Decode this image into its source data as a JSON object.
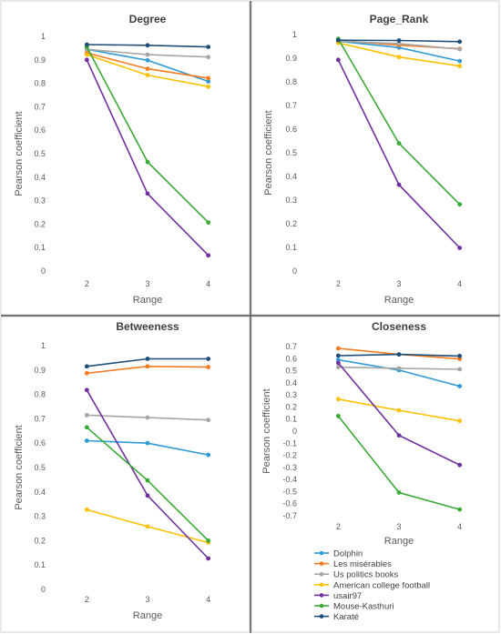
{
  "chart_data": [
    {
      "type": "line",
      "title": "Degree",
      "xlabel": "Range",
      "ylabel": "Pearson coefficient",
      "categories": [
        "2",
        "3",
        "4"
      ],
      "ylim": [
        0,
        1
      ],
      "yticks": [
        "0",
        "0.1",
        "0.2",
        "0.3",
        "0.4",
        "0.5",
        "0.6",
        "0.7",
        "0.8",
        "0.9",
        "1"
      ],
      "series": [
        {
          "name": "Dolphin",
          "values": [
            0.945,
            0.898,
            0.808
          ]
        },
        {
          "name": "Les misérables",
          "values": [
            0.93,
            0.862,
            0.822
          ]
        },
        {
          "name": "Us politics books",
          "values": [
            0.945,
            0.922,
            0.912
          ]
        },
        {
          "name": "American college football",
          "values": [
            0.922,
            0.835,
            0.786
          ]
        },
        {
          "name": "usair97",
          "values": [
            0.9,
            0.33,
            0.067
          ]
        },
        {
          "name": "Mouse-Kasthuri",
          "values": [
            0.955,
            0.465,
            0.207
          ]
        },
        {
          "name": "Karaté",
          "values": [
            0.965,
            0.962,
            0.955
          ]
        }
      ]
    },
    {
      "type": "line",
      "title": "Page_Rank",
      "xlabel": "Range",
      "ylabel": "Pearson coefficient",
      "categories": [
        "2",
        "3",
        "4"
      ],
      "ylim": [
        0,
        1
      ],
      "yticks": [
        "0",
        "0.1",
        "0.2",
        "0.3",
        "0.4",
        "0.5",
        "0.6",
        "0.7",
        "0.8",
        "0.9",
        "1"
      ],
      "series": [
        {
          "name": "Dolphin",
          "values": [
            0.972,
            0.945,
            0.888
          ]
        },
        {
          "name": "Les misérables",
          "values": [
            0.975,
            0.955,
            0.94
          ]
        },
        {
          "name": "Us politics books",
          "values": [
            0.972,
            0.962,
            0.938
          ]
        },
        {
          "name": "American college football",
          "values": [
            0.965,
            0.905,
            0.867
          ]
        },
        {
          "name": "usair97",
          "values": [
            0.893,
            0.365,
            0.098
          ]
        },
        {
          "name": "Mouse-Kasthuri",
          "values": [
            0.982,
            0.54,
            0.282
          ]
        },
        {
          "name": "Karaté",
          "values": [
            0.976,
            0.975,
            0.97
          ]
        }
      ]
    },
    {
      "type": "line",
      "title": "Betweeness",
      "xlabel": "Range",
      "ylabel": "Pearson coefficient",
      "categories": [
        "2",
        "3",
        "4"
      ],
      "ylim": [
        0,
        1
      ],
      "yticks": [
        "0",
        "0.1",
        "0.2",
        "0.3",
        "0.4",
        "0.5",
        "0.6",
        "0.7",
        "0.8",
        "0.9",
        "1"
      ],
      "series": [
        {
          "name": "Dolphin",
          "values": [
            0.61,
            0.6,
            0.552
          ]
        },
        {
          "name": "Les misérables",
          "values": [
            0.887,
            0.915,
            0.912
          ]
        },
        {
          "name": "Us politics books",
          "values": [
            0.715,
            0.705,
            0.695
          ]
        },
        {
          "name": "American college football",
          "values": [
            0.327,
            0.258,
            0.192
          ]
        },
        {
          "name": "usair97",
          "values": [
            0.818,
            0.385,
            0.127
          ]
        },
        {
          "name": "Mouse-Kasthuri",
          "values": [
            0.665,
            0.447,
            0.2
          ]
        },
        {
          "name": "Karaté",
          "values": [
            0.915,
            0.946,
            0.946
          ]
        }
      ]
    },
    {
      "type": "line",
      "title": "Closeness",
      "xlabel": "Range",
      "ylabel": "Pearson coefficient",
      "categories": [
        "2",
        "3",
        "4"
      ],
      "ylim": [
        -0.7,
        0.7
      ],
      "yticks": [
        "0.7",
        "0.6",
        "0.5",
        "0.4",
        "0.3",
        "0.2",
        "0.1",
        "0",
        "-0.1",
        "-0.2",
        "-0.3",
        "-0.4",
        "-0.5",
        "-0.6",
        "-0.7"
      ],
      "series": [
        {
          "name": "Dolphin",
          "values": [
            0.59,
            0.505,
            0.372
          ]
        },
        {
          "name": "Les misérables",
          "values": [
            0.685,
            0.635,
            0.598
          ]
        },
        {
          "name": "Us politics books",
          "values": [
            0.53,
            0.52,
            0.512
          ]
        },
        {
          "name": "American college football",
          "values": [
            0.265,
            0.172,
            0.085
          ]
        },
        {
          "name": "usair97",
          "values": [
            0.565,
            -0.035,
            -0.28
          ]
        },
        {
          "name": "Mouse-Kasthuri",
          "values": [
            0.125,
            -0.508,
            -0.648
          ]
        },
        {
          "name": "Karaté",
          "values": [
            0.625,
            0.635,
            0.622
          ]
        }
      ]
    }
  ],
  "colors": {
    "Dolphin": "#2e9bd6",
    "Les misérables": "#f47b20",
    "Us politics books": "#a6a6a6",
    "American college football": "#ffc000",
    "usair97": "#7030a0",
    "Mouse-Kasthuri": "#3aaa35",
    "Karaté": "#1f4e79"
  },
  "legend": {
    "placement": "bottom-right panel, below Closeness chart",
    "entries": [
      "Dolphin",
      "Les misérables",
      "Us politics books",
      "American college football",
      "usair97",
      "Mouse-Kasthuri",
      "Karaté"
    ]
  }
}
